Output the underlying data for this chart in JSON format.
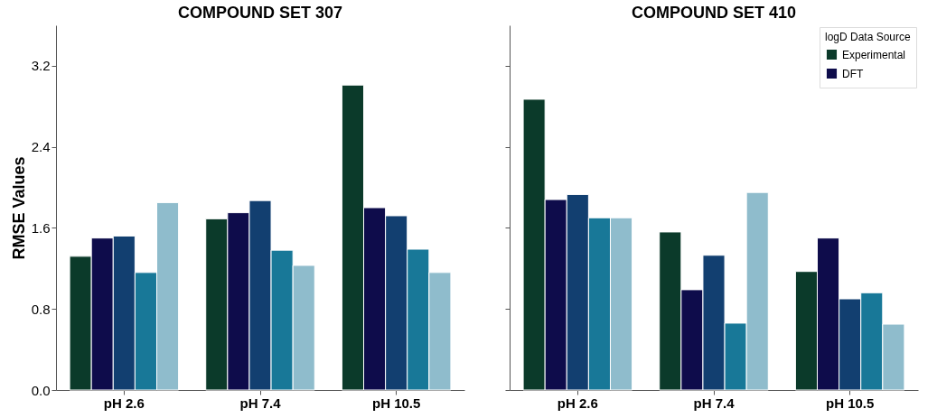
{
  "chart_data": [
    {
      "type": "bar",
      "title": "COMPOUND SET 307",
      "ylabel": "RMSE Values",
      "categories": [
        "pH 2.6",
        "pH 7.4",
        "pH 10.5"
      ],
      "ylim": [
        0,
        3.6
      ],
      "yticks": [
        {
          "value": 0,
          "label": "0.0"
        },
        0.8,
        1.6,
        2.4,
        3.2
      ],
      "grid": false,
      "series": [
        {
          "color": "#0b3a2a",
          "values": [
            1.32,
            1.69,
            3.01
          ]
        },
        {
          "color": "#0e0c4b",
          "values": [
            1.5,
            1.75,
            1.8
          ]
        },
        {
          "color": "#123f70",
          "values": [
            1.52,
            1.87,
            1.72
          ]
        },
        {
          "color": "#187898",
          "values": [
            1.16,
            1.38,
            1.39
          ]
        },
        {
          "color": "#8fbccc",
          "values": [
            1.85,
            1.23,
            1.16
          ]
        }
      ]
    },
    {
      "type": "bar",
      "title": "COMPOUND SET 410",
      "legend_title": "logD Data Source",
      "legend": "top right",
      "tick_labels": "x",
      "categories": [
        "pH 2.6",
        "pH 7.4",
        "pH 10.5"
      ],
      "ylim": [
        0,
        3.6
      ],
      "yticks": [
        0,
        0.8,
        1.6,
        2.4,
        3.2
      ],
      "grid": false,
      "series": [
        {
          "name": "Experimental",
          "color": "#0b3a2a",
          "values": [
            2.87,
            1.56,
            1.17
          ]
        },
        {
          "name": "DFT",
          "color": "#0e0c4b",
          "values": [
            1.88,
            0.99,
            1.5
          ]
        },
        {
          "color": "#123f70",
          "values": [
            1.93,
            1.33,
            0.9
          ]
        },
        {
          "color": "#187898",
          "values": [
            1.7,
            0.66,
            0.96
          ]
        },
        {
          "color": "#8fbccc",
          "values": [
            1.7,
            1.95,
            0.65
          ]
        }
      ]
    }
  ]
}
